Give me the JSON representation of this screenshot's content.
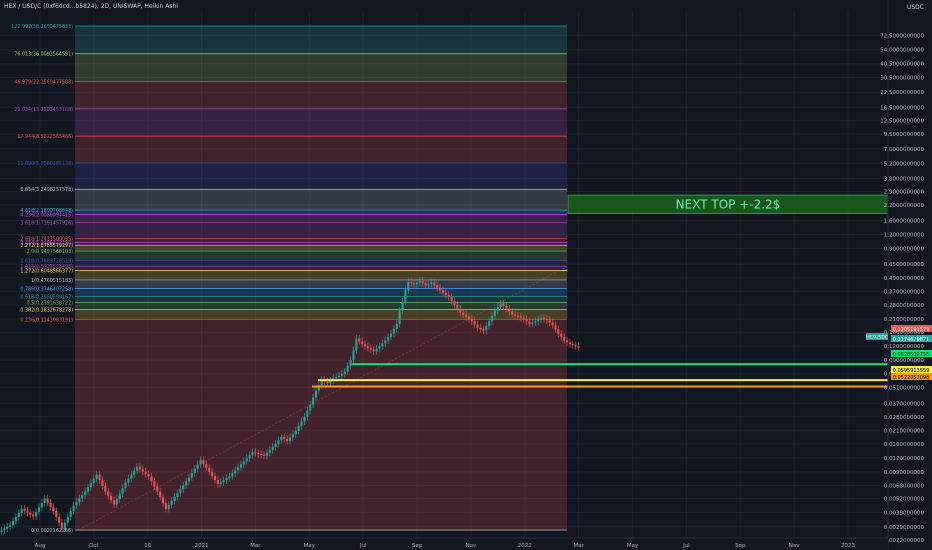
{
  "header": {
    "symbol": "HEX / USD/C (0xf6dcd...b5824), 2D, UNISWAP, Heikin Ashi"
  },
  "chart_data": {
    "type": "candlestick",
    "symbol": "HEX / USD/C (0xf6dcd...b5824), 2D, UNISWAP, Heikin Ashi",
    "currency_label": "USDC",
    "scale": "log",
    "ylim": [
      0.0025,
      120
    ],
    "price_ticks": [
      "72.5000000000",
      "54.0000000000",
      "40.5000000000",
      "30.5000000000",
      "22.5000000000",
      "16.5000000000",
      "12.5000000000",
      "9.5000000000",
      "7.0000000000",
      "5.2000000000",
      "3.8000000000",
      "2.9000000000",
      "2.2000000000",
      "1.6000000000",
      "1.2000000000",
      "0.9000000000",
      "0.6500000000",
      "0.4900000000",
      "0.3700000000",
      "0.2800000000",
      "0.2100000000",
      "0.1600000000",
      "0.1200000000",
      "0.0900000000",
      "0.0680000000",
      "0.0510000000",
      "0.0370000000",
      "0.0280000000",
      "0.0210000000",
      "0.0160000000",
      "0.0120000000",
      "0.0090000000",
      "0.0068000000",
      "0.0052000000",
      "0.0039000000",
      "0.0029000000",
      "0.0022000000"
    ],
    "time_ticks": [
      "Aug",
      "Oct",
      "16",
      "2021",
      "Mar",
      "May",
      "Jul",
      "Sep",
      "Nov",
      "2022",
      "Mar",
      "May",
      "Jul",
      "Sep",
      "Nov",
      "2023"
    ],
    "fib_levels": [
      {
        "label": "122.992(58.2650475833)",
        "color": "#26a69a"
      },
      {
        "label": "76.013(36.0093564591)",
        "color": "#9ccc65"
      },
      {
        "label": "46.979(22.2560477508)",
        "color": "#ef5350"
      },
      {
        "label": "29.034(13.7593453168)",
        "color": "#ab47bc"
      },
      {
        "label": "17.944(8.5022565466)",
        "color": "#ef5350"
      },
      {
        "label": "11.090(5.2560285138)",
        "color": "#3f51b5"
      },
      {
        "label": "6.854(3.2498257578)",
        "color": "#b0bec5"
      },
      {
        "label": "4.618(2.1890708848)",
        "color": "#42a5f5"
      },
      {
        "label": "4.236(2.0088094415)",
        "color": "#e040fb"
      },
      {
        "label": "3.618(1.7161457926)",
        "color": "#ab47bc"
      },
      {
        "label": "2.618(1.2433500095)",
        "color": "#ef5350"
      },
      {
        "label": "2.414(1.1466473194)",
        "color": "#e040fb"
      },
      {
        "label": "2.272(1.0785579297)",
        "color": "#fdd835"
      },
      {
        "label": "2.0(0.9497568103)",
        "color": "#66bb6a"
      },
      {
        "label": "1.618(0.7689728519)",
        "color": "#3f51b5"
      },
      {
        "label": "1.414(0.6727523498)",
        "color": "#ab47bc"
      },
      {
        "label": "1.272(0.6048566377)",
        "color": "#fdd835"
      },
      {
        "label": "1(0.4760515183)",
        "color": "#b0bec5"
      },
      {
        "label": "0.786(0.3746407258)",
        "color": "#42a5f5"
      },
      {
        "label": "0.618(0.2950599167)",
        "color": "#26a69a"
      },
      {
        "label": "0.5(0.2391638722)",
        "color": "#66bb6a"
      },
      {
        "label": "0.382(0.1832678278)",
        "color": "#fdd835"
      },
      {
        "label": "0.236(0.1143083191)",
        "color": "#ef5350"
      },
      {
        "label": "0(0.0022162266)",
        "color": "#b0bec5"
      }
    ],
    "annotation": "NEXT TOP +-2.2$",
    "right_labels": [
      {
        "text": "0.1205191579",
        "color": "#ef5350"
      },
      {
        "text": "HEXUSDC",
        "color": "#26a69a"
      },
      {
        "text": "0.1174679871",
        "color": "#26a69a"
      },
      {
        "text": "0.0828532755",
        "color": "#00e676"
      },
      {
        "text": "0.0595913559",
        "color": "#ffeb3b"
      },
      {
        "text": "0.0522052098",
        "color": "#ff9800"
      }
    ],
    "horizontal_lines": [
      {
        "value": 0.0828532755,
        "color": "#00e676"
      },
      {
        "value": 0.0595913559,
        "color": "#ffeb3b"
      },
      {
        "value": 0.0522052098,
        "color": "#ff9800"
      }
    ],
    "price_path": [
      [
        0,
        0.0026
      ],
      [
        4,
        0.003
      ],
      [
        8,
        0.0042
      ],
      [
        12,
        0.0036
      ],
      [
        16,
        0.0052
      ],
      [
        19,
        0.004
      ],
      [
        22,
        0.0028
      ],
      [
        26,
        0.0045
      ],
      [
        30,
        0.006
      ],
      [
        34,
        0.0085
      ],
      [
        37,
        0.006
      ],
      [
        40,
        0.0046
      ],
      [
        44,
        0.0072
      ],
      [
        48,
        0.01
      ],
      [
        52,
        0.0082
      ],
      [
        55,
        0.006
      ],
      [
        58,
        0.0042
      ],
      [
        62,
        0.0058
      ],
      [
        66,
        0.008
      ],
      [
        70,
        0.0115
      ],
      [
        73,
        0.009
      ],
      [
        76,
        0.007
      ],
      [
        80,
        0.0082
      ],
      [
        84,
        0.0105
      ],
      [
        88,
        0.0135
      ],
      [
        92,
        0.0125
      ],
      [
        95,
        0.015
      ],
      [
        98,
        0.0185
      ],
      [
        100,
        0.017
      ],
      [
        103,
        0.021
      ],
      [
        106,
        0.028
      ],
      [
        108,
        0.036
      ],
      [
        110,
        0.048
      ],
      [
        112,
        0.06
      ],
      [
        114,
        0.056
      ],
      [
        116,
        0.062
      ],
      [
        118,
        0.065
      ],
      [
        120,
        0.071
      ],
      [
        122,
        0.09
      ],
      [
        123,
        0.11
      ],
      [
        124,
        0.14
      ],
      [
        126,
        0.125
      ],
      [
        128,
        0.115
      ],
      [
        130,
        0.108
      ],
      [
        132,
        0.12
      ],
      [
        134,
        0.135
      ],
      [
        136,
        0.155
      ],
      [
        138,
        0.19
      ],
      [
        139,
        0.25
      ],
      [
        140,
        0.3
      ],
      [
        141,
        0.38
      ],
      [
        142,
        0.45
      ],
      [
        144,
        0.43
      ],
      [
        146,
        0.46
      ],
      [
        148,
        0.42
      ],
      [
        150,
        0.445
      ],
      [
        152,
        0.4
      ],
      [
        154,
        0.36
      ],
      [
        156,
        0.33
      ],
      [
        158,
        0.28
      ],
      [
        160,
        0.24
      ],
      [
        162,
        0.22
      ],
      [
        164,
        0.2
      ],
      [
        166,
        0.175
      ],
      [
        168,
        0.165
      ],
      [
        170,
        0.2
      ],
      [
        172,
        0.25
      ],
      [
        174,
        0.29
      ],
      [
        176,
        0.26
      ],
      [
        178,
        0.23
      ],
      [
        180,
        0.22
      ],
      [
        182,
        0.21
      ],
      [
        184,
        0.19
      ],
      [
        186,
        0.2
      ],
      [
        188,
        0.215
      ],
      [
        190,
        0.205
      ],
      [
        192,
        0.185
      ],
      [
        194,
        0.155
      ],
      [
        196,
        0.135
      ],
      [
        198,
        0.125
      ],
      [
        200,
        0.12
      ],
      [
        201,
        0.1175
      ]
    ]
  }
}
